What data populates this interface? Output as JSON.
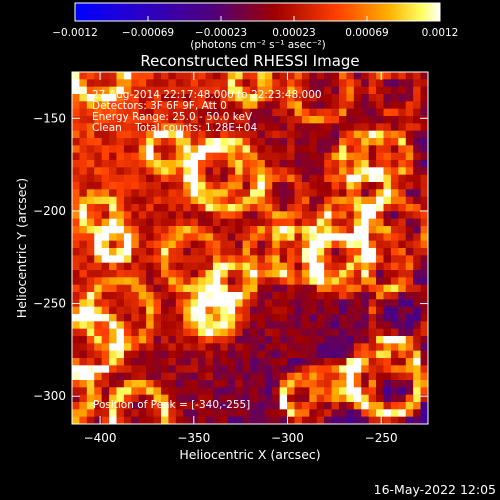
{
  "figure": {
    "title": "Reconstructed RHESSI Image",
    "footer_date": "16-May-2022 12:05"
  },
  "colorbar": {
    "unit_label": "(photons cm⁻² s⁻¹ asec⁻²)",
    "tick_labels": [
      "-0.0012",
      "-0.00069",
      "-0.00023",
      "0.00023",
      "0.00069",
      "0.0012"
    ],
    "range": [
      -0.0012,
      0.0012
    ],
    "colormap": "rhessi-blue-to-white",
    "colors": {
      "low": "#0000ff",
      "mid_dark": "#3a007a",
      "mid": "#a00000",
      "high_orange": "#ff8000",
      "high": "#ffffff"
    }
  },
  "annotation": {
    "lines": [
      "27-Aug-2014 22:17:48.000 to 22:23:48.000",
      "Detectors: 3F 6F 9F, Att 0",
      "Energy Range: 25.0 - 50.0 keV",
      "Clean    Total counts: 1.28E+04"
    ],
    "peak_label": "Position of Peak = [-340,-255]"
  },
  "chart_data": {
    "type": "heatmap",
    "title": "Reconstructed RHESSI Image",
    "xlabel": "Heliocentric X (arcsec)",
    "ylabel": "Heliocentric Y (arcsec)",
    "xlim": [
      -415,
      -225
    ],
    "ylim": [
      -315,
      -125
    ],
    "x_ticks": [
      -400,
      -350,
      -300,
      -250
    ],
    "y_ticks": [
      -150,
      -200,
      -250,
      -300
    ],
    "x_tick_labels": [
      "−400",
      "−350",
      "−300",
      "−250"
    ],
    "y_tick_labels": [
      "−150",
      "−200",
      "−250",
      "−300"
    ],
    "peak_position": [
      -340,
      -255
    ],
    "value_range": [
      -0.0012,
      0.0012
    ],
    "grid": false
  }
}
